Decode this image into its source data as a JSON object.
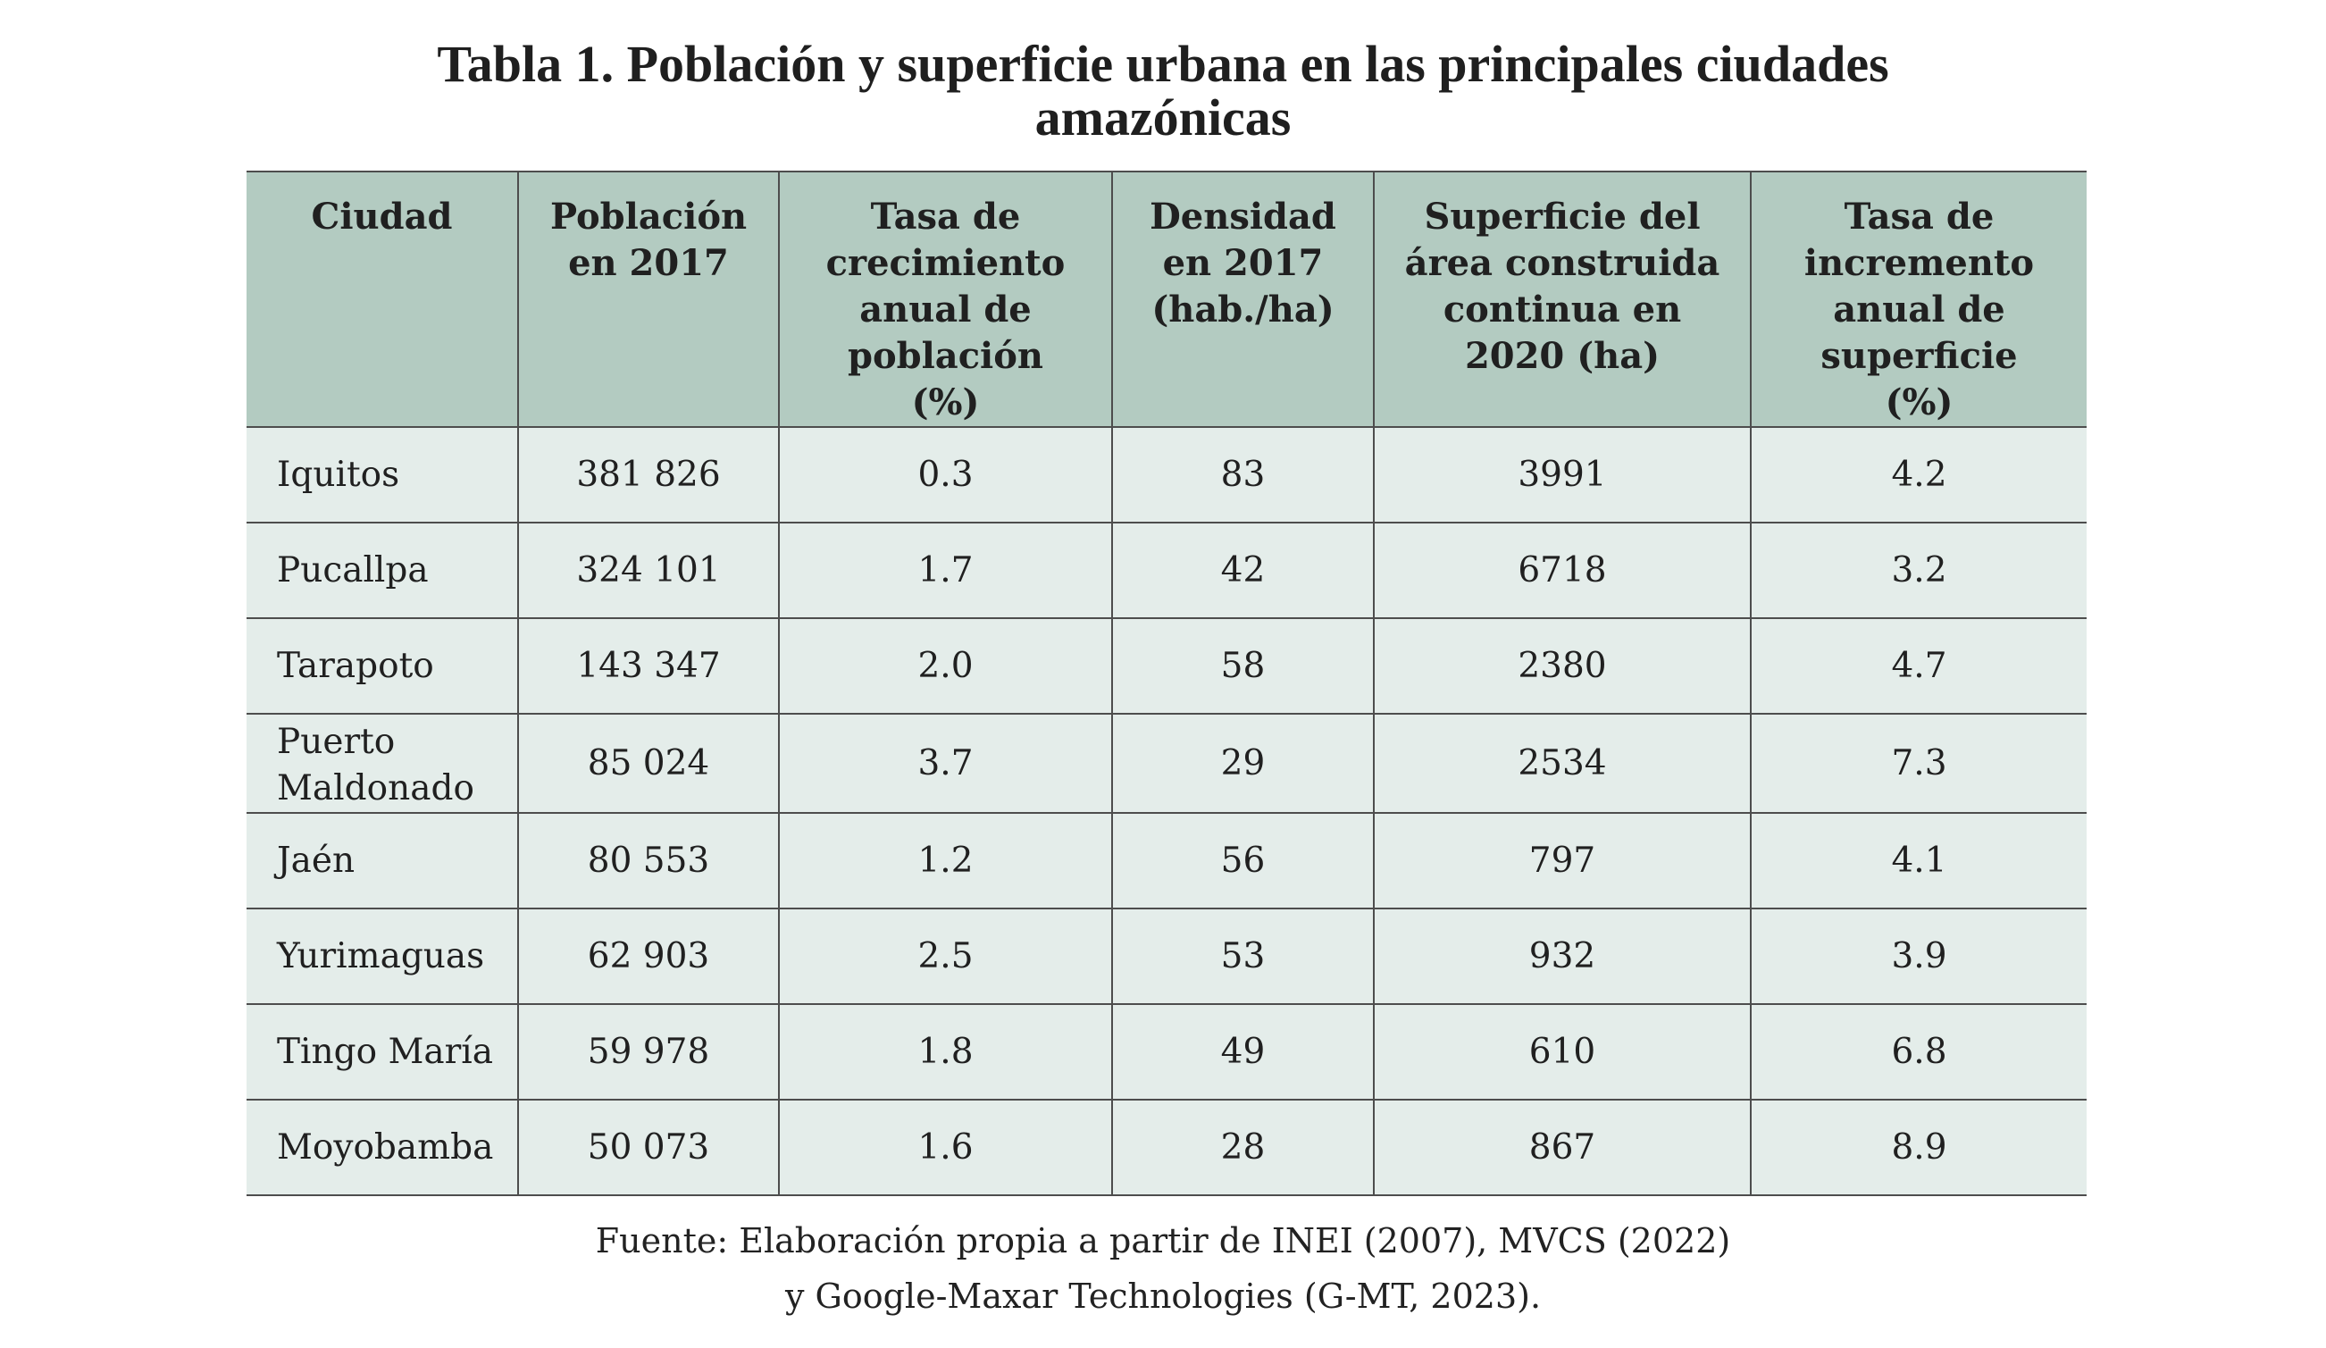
{
  "title": {
    "line1": "Tabla 1. Población y superficie urbana en las principales ciudades",
    "line2": "amazónicas"
  },
  "table": {
    "headers": [
      "Ciudad",
      "Población en 2017",
      "Tasa de crecimiento anual de población (%)",
      "Densidad en 2017 (hab./ha)",
      "Superficie del área construida continua en 2020 (ha)",
      "Tasa de incremento anual de superficie (%)"
    ],
    "rows": [
      [
        "Iquitos",
        "381 826",
        "0.3",
        "83",
        "3991",
        "4.2"
      ],
      [
        "Pucallpa",
        "324 101",
        "1.7",
        "42",
        "6718",
        "3.2"
      ],
      [
        "Tarapoto",
        "143 347",
        "2.0",
        "58",
        "2380",
        "4.7"
      ],
      [
        "Puerto Maldonado",
        "85 024",
        "3.7",
        "29",
        "2534",
        "7.3"
      ],
      [
        "Jaén",
        "80 553",
        "1.2",
        "56",
        "797",
        "4.1"
      ],
      [
        "Yurimaguas",
        "62 903",
        "2.5",
        "53",
        "932",
        "3.9"
      ],
      [
        "Tingo María",
        "59 978",
        "1.8",
        "49",
        "610",
        "6.8"
      ],
      [
        "Moyobamba",
        "50 073",
        "1.6",
        "28",
        "867",
        "8.9"
      ]
    ]
  },
  "source": {
    "line1": "Fuente: Elaboración propia a partir de INEI (2007), MVCS (2022)",
    "line2": "y Google-Maxar Technologies (G-MT, 2023)."
  },
  "colors": {
    "header_bg": "#b3cbc1",
    "row_bg": "#e4edea",
    "rule": "#4d4d4d"
  }
}
